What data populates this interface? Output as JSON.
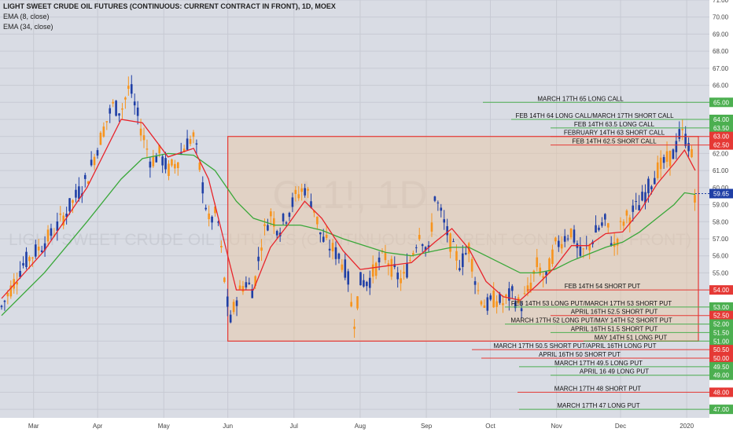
{
  "header": {
    "title": "LIGHT SWEET CRUDE OIL FUTURES (CONTINUOUS: CURRENT CONTRACT IN FRONT), 1D, MOEX",
    "indicator1": "EMA (8, close)",
    "indicator2": "EMA (34, close)"
  },
  "watermark": {
    "symbol": "CL1!, 1D",
    "name": "LIGHT SWEET CRUDE OIL FUTURES (CONTINUOUS: CURRENT CONTRACT IN FRONT)"
  },
  "colors": {
    "background": "#d9dce4",
    "grid": "#c7cad3",
    "up_candle": "#1f3fa6",
    "down_candle": "#f7941d",
    "ema_fast": "#e8232a",
    "ema_slow": "#3aa83a",
    "zone_fill": "#e9c8a6",
    "zone_border": "#e53935",
    "call_green": "#4caf50",
    "put_red": "#e53935",
    "price_tag": "#1f3fa6"
  },
  "chart_data": {
    "type": "candlestick",
    "title": "LIGHT SWEET CRUDE OIL FUTURES (CONTINUOUS: CURRENT CONTRACT IN FRONT), 1D, MOEX",
    "ylim": [
      46.5,
      71.0
    ],
    "y_ticks": [
      "47.00",
      "48.00",
      "49.00",
      "50.00",
      "51.00",
      "52.00",
      "53.00",
      "54.00",
      "55.00",
      "56.00",
      "57.00",
      "58.00",
      "59.00",
      "60.00",
      "61.00",
      "62.00",
      "63.00",
      "64.00",
      "65.00",
      "66.00",
      "67.00",
      "68.00",
      "69.00",
      "70.00",
      "71.00"
    ],
    "x_ticks": [
      "Mar",
      "Apr",
      "May",
      "Jun",
      "Jul",
      "Aug",
      "Sep",
      "Oct",
      "Nov",
      "Dec",
      "2020"
    ],
    "x_range_days": [
      0,
      325
    ],
    "x_tick_days": [
      15,
      45,
      76,
      106,
      137,
      168,
      199,
      229,
      260,
      290,
      321
    ],
    "last_price": "59.65",
    "price_path": [
      [
        0,
        53.0
      ],
      [
        10,
        55.5
      ],
      [
        18,
        56.5
      ],
      [
        25,
        57.5
      ],
      [
        30,
        58.5
      ],
      [
        35,
        59.5
      ],
      [
        40,
        60.5
      ],
      [
        44,
        62.0
      ],
      [
        48,
        63.5
      ],
      [
        52,
        64.8
      ],
      [
        56,
        64.5
      ],
      [
        60,
        66.0
      ],
      [
        63,
        64.5
      ],
      [
        66,
        63.2
      ],
      [
        70,
        61.5
      ],
      [
        74,
        62.0
      ],
      [
        78,
        61.0
      ],
      [
        82,
        61.5
      ],
      [
        86,
        62.5
      ],
      [
        90,
        63.0
      ],
      [
        93,
        61.0
      ],
      [
        97,
        58.0
      ],
      [
        101,
        58.5
      ],
      [
        104,
        55.0
      ],
      [
        107,
        52.0
      ],
      [
        110,
        53.5
      ],
      [
        114,
        54.5
      ],
      [
        118,
        54.0
      ],
      [
        122,
        57.0
      ],
      [
        126,
        58.5
      ],
      [
        130,
        57.5
      ],
      [
        134,
        58.5
      ],
      [
        138,
        59.5
      ],
      [
        142,
        60.0
      ],
      [
        146,
        59.0
      ],
      [
        150,
        57.0
      ],
      [
        154,
        56.5
      ],
      [
        158,
        56.0
      ],
      [
        162,
        55.0
      ],
      [
        165,
        52.0
      ],
      [
        168,
        54.5
      ],
      [
        172,
        54.5
      ],
      [
        176,
        55.5
      ],
      [
        180,
        56.0
      ],
      [
        184,
        55.0
      ],
      [
        188,
        54.5
      ],
      [
        192,
        56.0
      ],
      [
        196,
        57.5
      ],
      [
        200,
        56.0
      ],
      [
        203,
        59.5
      ],
      [
        207,
        58.0
      ],
      [
        211,
        56.5
      ],
      [
        215,
        55.5
      ],
      [
        219,
        56.5
      ],
      [
        223,
        54.0
      ],
      [
        227,
        53.0
      ],
      [
        231,
        53.5
      ],
      [
        235,
        53.2
      ],
      [
        239,
        53.8
      ],
      [
        243,
        53.0
      ],
      [
        247,
        54.0
      ],
      [
        251,
        55.5
      ],
      [
        255,
        54.5
      ],
      [
        259,
        56.5
      ],
      [
        263,
        57.0
      ],
      [
        267,
        57.5
      ],
      [
        271,
        56.0
      ],
      [
        275,
        56.5
      ],
      [
        279,
        57.5
      ],
      [
        283,
        58.0
      ],
      [
        287,
        56.5
      ],
      [
        291,
        58.0
      ],
      [
        295,
        58.5
      ],
      [
        299,
        59.0
      ],
      [
        303,
        60.0
      ],
      [
        307,
        61.0
      ],
      [
        311,
        61.5
      ],
      [
        315,
        62.0
      ],
      [
        318,
        63.2
      ],
      [
        320,
        63.0
      ],
      [
        322,
        62.5
      ],
      [
        324,
        61.5
      ],
      [
        325,
        59.2
      ]
    ],
    "ema8_path": [
      [
        0,
        53.5
      ],
      [
        20,
        56.3
      ],
      [
        40,
        60.0
      ],
      [
        56,
        64.0
      ],
      [
        66,
        63.8
      ],
      [
        78,
        61.8
      ],
      [
        90,
        62.3
      ],
      [
        97,
        60.5
      ],
      [
        104,
        57.0
      ],
      [
        110,
        54.0
      ],
      [
        118,
        54.0
      ],
      [
        126,
        56.5
      ],
      [
        134,
        57.8
      ],
      [
        142,
        59.2
      ],
      [
        150,
        58.2
      ],
      [
        160,
        56.3
      ],
      [
        168,
        55.2
      ],
      [
        180,
        55.4
      ],
      [
        192,
        55.6
      ],
      [
        203,
        56.8
      ],
      [
        211,
        57.6
      ],
      [
        219,
        56.4
      ],
      [
        227,
        54.5
      ],
      [
        235,
        53.6
      ],
      [
        243,
        53.4
      ],
      [
        251,
        54.3
      ],
      [
        259,
        55.3
      ],
      [
        267,
        56.6
      ],
      [
        275,
        56.6
      ],
      [
        283,
        57.3
      ],
      [
        291,
        57.4
      ],
      [
        299,
        58.6
      ],
      [
        307,
        60.2
      ],
      [
        315,
        61.4
      ],
      [
        320,
        62.2
      ],
      [
        325,
        61.0
      ]
    ],
    "ema34_path": [
      [
        0,
        52.5
      ],
      [
        20,
        55.0
      ],
      [
        40,
        58.0
      ],
      [
        56,
        60.5
      ],
      [
        66,
        61.7
      ],
      [
        78,
        62.0
      ],
      [
        90,
        61.9
      ],
      [
        100,
        61.0
      ],
      [
        110,
        59.2
      ],
      [
        118,
        58.2
      ],
      [
        128,
        57.8
      ],
      [
        140,
        57.8
      ],
      [
        150,
        57.5
      ],
      [
        160,
        57.0
      ],
      [
        170,
        56.6
      ],
      [
        180,
        56.2
      ],
      [
        192,
        56.0
      ],
      [
        203,
        56.3
      ],
      [
        211,
        56.5
      ],
      [
        219,
        56.5
      ],
      [
        227,
        56.0
      ],
      [
        235,
        55.5
      ],
      [
        243,
        55.0
      ],
      [
        251,
        55.0
      ],
      [
        259,
        55.2
      ],
      [
        267,
        55.7
      ],
      [
        275,
        56.1
      ],
      [
        283,
        56.5
      ],
      [
        291,
        56.8
      ],
      [
        299,
        57.4
      ],
      [
        307,
        58.2
      ],
      [
        315,
        59.0
      ],
      [
        320,
        59.7
      ],
      [
        325,
        59.6
      ]
    ],
    "annotations": [
      {
        "label": "MARCH 17TH 65 LONG CALL",
        "price": 65.0,
        "tag": "65.00",
        "kind": "call"
      },
      {
        "label": "FEB 14TH 64 LONG CALL/MARCH 17TH SHORT CALL",
        "price": 64.0,
        "tag": "64.00",
        "kind": "call"
      },
      {
        "label": "FEB 14TH 63.5 LONG CALL",
        "price": 63.5,
        "tag": "63.50",
        "kind": "call"
      },
      {
        "label": "FEBRUARY 14TH 63 SHORT CALL",
        "price": 63.0,
        "tag": "63.00",
        "kind": "put"
      },
      {
        "label": "FEB 14TH 62.5 SHORT CALL",
        "price": 62.5,
        "tag": "62.50",
        "kind": "put"
      },
      {
        "label": "FEB 14TH 54 SHORT PUT",
        "price": 54.0,
        "tag": "54.00",
        "kind": "put"
      },
      {
        "label": "FEB 14TH 53 LONG PUT/MARCH 17TH 53 SHORT PUT",
        "price": 53.0,
        "tag": "53.00",
        "kind": "call"
      },
      {
        "label": "APRIL 16TH 52.5 SHORT PUT",
        "price": 52.5,
        "tag": "52.50",
        "kind": "put"
      },
      {
        "label": "MARCH 17TH 52 LONG PUT/MAY 14TH 52 SHORT PUT",
        "price": 52.0,
        "tag": "52.00",
        "kind": "call"
      },
      {
        "label": "APRIL 16TH 51.5 SHORT PUT",
        "price": 51.5,
        "tag": "51.50",
        "kind": "call"
      },
      {
        "label": "MAY 14TH 51 LONG PUT",
        "price": 51.0,
        "tag": "51.00",
        "kind": "call"
      },
      {
        "label": "MARCH 17TH 50.5 SHORT PUT/APRIL 16TH LONG PUT",
        "price": 50.5,
        "tag": "50.50",
        "kind": "put"
      },
      {
        "label": "APRIL 16TH 50 SHORT PUT",
        "price": 50.0,
        "tag": "50.00",
        "kind": "put"
      },
      {
        "label": "MARCH 17TH 49.5 LONG PUT",
        "price": 49.5,
        "tag": "49.50",
        "kind": "call"
      },
      {
        "label": "APRIL 16 49 LONG PUT",
        "price": 49.0,
        "tag": "49.00",
        "kind": "call"
      },
      {
        "label": "MARCH 17TH 48 SHORT PUT",
        "price": 48.0,
        "tag": "48.00",
        "kind": "put"
      },
      {
        "label": "MARCH 17TH 47 LONG PUT",
        "price": 47.0,
        "tag": "47.00",
        "kind": "call"
      }
    ],
    "zone": {
      "x_start_day": 106,
      "x_end_day": 325,
      "price_high": 63.0,
      "price_low": 51.0
    }
  }
}
